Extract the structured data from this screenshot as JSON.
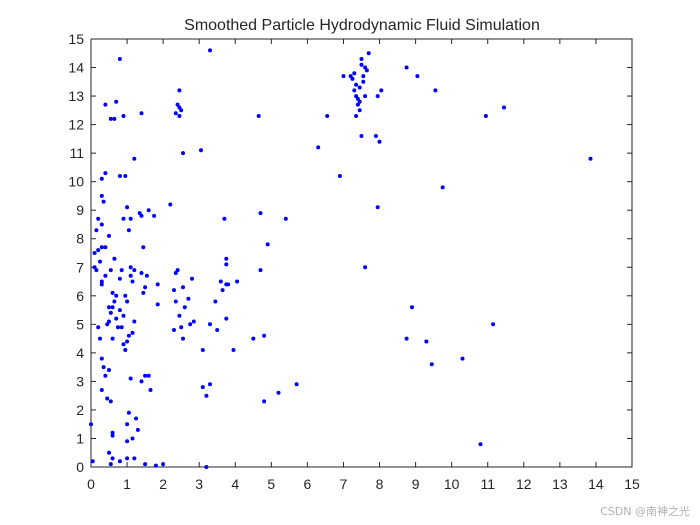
{
  "chart_data": {
    "type": "scatter",
    "title": "Smoothed Particle Hydrodynamic Fluid Simulation",
    "xlabel": "",
    "ylabel": "",
    "xlim": [
      0,
      15
    ],
    "ylim": [
      0,
      15
    ],
    "xticks": [
      "0",
      "1",
      "2",
      "3",
      "4",
      "5",
      "6",
      "7",
      "8",
      "9",
      "10",
      "11",
      "12",
      "13",
      "14",
      "15"
    ],
    "yticks": [
      "0",
      "1",
      "2",
      "3",
      "4",
      "5",
      "6",
      "7",
      "8",
      "9",
      "10",
      "11",
      "12",
      "13",
      "14",
      "15"
    ],
    "grid": false,
    "marker_color": "#0000ff",
    "series": [
      {
        "points": [
          [
            0.0,
            1.5
          ],
          [
            0.05,
            0.2
          ],
          [
            0.1,
            7.5
          ],
          [
            0.1,
            7.0
          ],
          [
            0.15,
            6.9
          ],
          [
            0.15,
            8.3
          ],
          [
            0.2,
            7.6
          ],
          [
            0.2,
            8.7
          ],
          [
            0.2,
            4.9
          ],
          [
            0.25,
            7.2
          ],
          [
            0.3,
            8.5
          ],
          [
            0.3,
            7.7
          ],
          [
            0.3,
            6.5
          ],
          [
            0.3,
            6.4
          ],
          [
            0.25,
            4.5
          ],
          [
            0.3,
            3.8
          ],
          [
            0.35,
            3.5
          ],
          [
            0.3,
            9.5
          ],
          [
            0.35,
            9.3
          ],
          [
            0.3,
            10.1
          ],
          [
            0.4,
            10.3
          ],
          [
            0.4,
            12.7
          ],
          [
            0.4,
            7.7
          ],
          [
            0.4,
            6.7
          ],
          [
            0.45,
            5.0
          ],
          [
            0.5,
            5.6
          ],
          [
            0.5,
            5.1
          ],
          [
            0.5,
            3.4
          ],
          [
            0.4,
            3.2
          ],
          [
            0.3,
            2.7
          ],
          [
            0.45,
            2.4
          ],
          [
            0.55,
            2.3
          ],
          [
            0.5,
            0.5
          ],
          [
            0.6,
            0.3
          ],
          [
            0.55,
            0.1
          ],
          [
            0.6,
            1.2
          ],
          [
            0.6,
            1.1
          ],
          [
            0.55,
            12.2
          ],
          [
            0.65,
            12.2
          ],
          [
            0.7,
            12.8
          ],
          [
            0.65,
            7.3
          ],
          [
            0.55,
            6.9
          ],
          [
            0.6,
            6.1
          ],
          [
            0.7,
            6.0
          ],
          [
            0.65,
            5.8
          ],
          [
            0.6,
            5.6
          ],
          [
            0.55,
            5.4
          ],
          [
            0.7,
            5.2
          ],
          [
            0.75,
            4.9
          ],
          [
            0.6,
            4.5
          ],
          [
            0.5,
            8.1
          ],
          [
            0.8,
            10.2
          ],
          [
            0.8,
            14.3
          ],
          [
            0.9,
            12.3
          ],
          [
            0.95,
            10.2
          ],
          [
            0.9,
            8.7
          ],
          [
            0.85,
            6.9
          ],
          [
            0.8,
            6.6
          ],
          [
            0.8,
            5.5
          ],
          [
            0.9,
            5.3
          ],
          [
            0.85,
            4.9
          ],
          [
            0.9,
            4.3
          ],
          [
            1.0,
            4.4
          ],
          [
            0.95,
            6.0
          ],
          [
            1.0,
            5.8
          ],
          [
            0.95,
            4.1
          ],
          [
            1.0,
            9.1
          ],
          [
            1.1,
            8.7
          ],
          [
            1.05,
            8.3
          ],
          [
            1.1,
            7.0
          ],
          [
            1.2,
            6.9
          ],
          [
            1.15,
            6.5
          ],
          [
            1.1,
            6.7
          ],
          [
            1.2,
            5.1
          ],
          [
            1.15,
            4.7
          ],
          [
            1.05,
            4.6
          ],
          [
            1.1,
            3.1
          ],
          [
            1.05,
            1.9
          ],
          [
            1.0,
            1.5
          ],
          [
            1.0,
            0.9
          ],
          [
            1.0,
            0.3
          ],
          [
            0.8,
            0.2
          ],
          [
            1.2,
            0.3
          ],
          [
            1.15,
            1.0
          ],
          [
            1.25,
            1.7
          ],
          [
            1.3,
            1.3
          ],
          [
            1.2,
            10.8
          ],
          [
            1.4,
            12.4
          ],
          [
            1.35,
            8.9
          ],
          [
            1.4,
            8.8
          ],
          [
            1.45,
            7.7
          ],
          [
            1.4,
            6.8
          ],
          [
            1.5,
            6.3
          ],
          [
            1.45,
            6.1
          ],
          [
            1.55,
            6.7
          ],
          [
            1.5,
            3.2
          ],
          [
            1.4,
            3.0
          ],
          [
            1.6,
            3.2
          ],
          [
            1.6,
            9.0
          ],
          [
            1.75,
            8.8
          ],
          [
            1.65,
            2.7
          ],
          [
            1.5,
            0.1
          ],
          [
            1.8,
            0.05
          ],
          [
            1.85,
            6.4
          ],
          [
            1.85,
            5.7
          ],
          [
            2.0,
            0.1
          ],
          [
            2.2,
            9.2
          ],
          [
            2.3,
            6.2
          ],
          [
            2.35,
            6.8
          ],
          [
            2.4,
            6.9
          ],
          [
            2.35,
            5.8
          ],
          [
            2.45,
            5.3
          ],
          [
            2.3,
            4.8
          ],
          [
            2.5,
            4.9
          ],
          [
            2.55,
            4.5
          ],
          [
            2.4,
            12.7
          ],
          [
            2.45,
            12.6
          ],
          [
            2.35,
            12.4
          ],
          [
            2.45,
            12.3
          ],
          [
            2.5,
            12.5
          ],
          [
            2.55,
            11.0
          ],
          [
            2.45,
            13.2
          ],
          [
            2.55,
            6.3
          ],
          [
            2.6,
            5.6
          ],
          [
            2.7,
            5.9
          ],
          [
            2.8,
            6.6
          ],
          [
            2.75,
            5.0
          ],
          [
            2.85,
            5.1
          ],
          [
            3.05,
            11.1
          ],
          [
            3.1,
            4.1
          ],
          [
            3.1,
            2.8
          ],
          [
            3.2,
            2.5
          ],
          [
            3.2,
            0.0
          ],
          [
            3.3,
            14.6
          ],
          [
            3.3,
            2.9
          ],
          [
            3.3,
            5.0
          ],
          [
            3.45,
            5.8
          ],
          [
            3.5,
            4.8
          ],
          [
            3.65,
            6.2
          ],
          [
            3.7,
            8.7
          ],
          [
            3.75,
            7.3
          ],
          [
            3.75,
            7.1
          ],
          [
            3.75,
            6.4
          ],
          [
            3.8,
            6.4
          ],
          [
            3.75,
            5.2
          ],
          [
            3.6,
            6.5
          ],
          [
            3.95,
            4.1
          ],
          [
            4.05,
            6.5
          ],
          [
            4.5,
            4.5
          ],
          [
            4.65,
            12.3
          ],
          [
            4.7,
            8.9
          ],
          [
            4.7,
            6.9
          ],
          [
            4.8,
            4.6
          ],
          [
            4.8,
            2.3
          ],
          [
            4.9,
            7.8
          ],
          [
            5.2,
            2.6
          ],
          [
            5.4,
            8.7
          ],
          [
            5.7,
            2.9
          ],
          [
            6.3,
            11.2
          ],
          [
            6.55,
            12.3
          ],
          [
            6.9,
            10.2
          ],
          [
            7.0,
            13.7
          ],
          [
            7.2,
            13.7
          ],
          [
            7.25,
            13.6
          ],
          [
            7.3,
            13.8
          ],
          [
            7.35,
            13.4
          ],
          [
            7.3,
            13.2
          ],
          [
            7.35,
            13.0
          ],
          [
            7.4,
            12.9
          ],
          [
            7.4,
            12.7
          ],
          [
            7.45,
            12.8
          ],
          [
            7.35,
            12.3
          ],
          [
            7.45,
            13.3
          ],
          [
            7.5,
            14.1
          ],
          [
            7.5,
            14.3
          ],
          [
            7.55,
            13.7
          ],
          [
            7.6,
            14.0
          ],
          [
            7.55,
            13.5
          ],
          [
            7.45,
            12.5
          ],
          [
            7.5,
            11.6
          ],
          [
            7.6,
            13.0
          ],
          [
            7.7,
            14.5
          ],
          [
            7.65,
            13.9
          ],
          [
            7.6,
            7.0
          ],
          [
            7.9,
            11.6
          ],
          [
            7.95,
            13.0
          ],
          [
            8.0,
            11.4
          ],
          [
            8.05,
            13.2
          ],
          [
            7.95,
            9.1
          ],
          [
            8.75,
            14.0
          ],
          [
            8.75,
            4.5
          ],
          [
            8.9,
            5.6
          ],
          [
            9.05,
            13.7
          ],
          [
            9.3,
            4.4
          ],
          [
            9.45,
            3.6
          ],
          [
            9.55,
            13.2
          ],
          [
            9.75,
            9.8
          ],
          [
            10.3,
            3.8
          ],
          [
            10.8,
            0.8
          ],
          [
            10.95,
            12.3
          ],
          [
            11.15,
            5.0
          ],
          [
            11.45,
            12.6
          ],
          [
            13.85,
            10.8
          ]
        ]
      }
    ]
  }
}
